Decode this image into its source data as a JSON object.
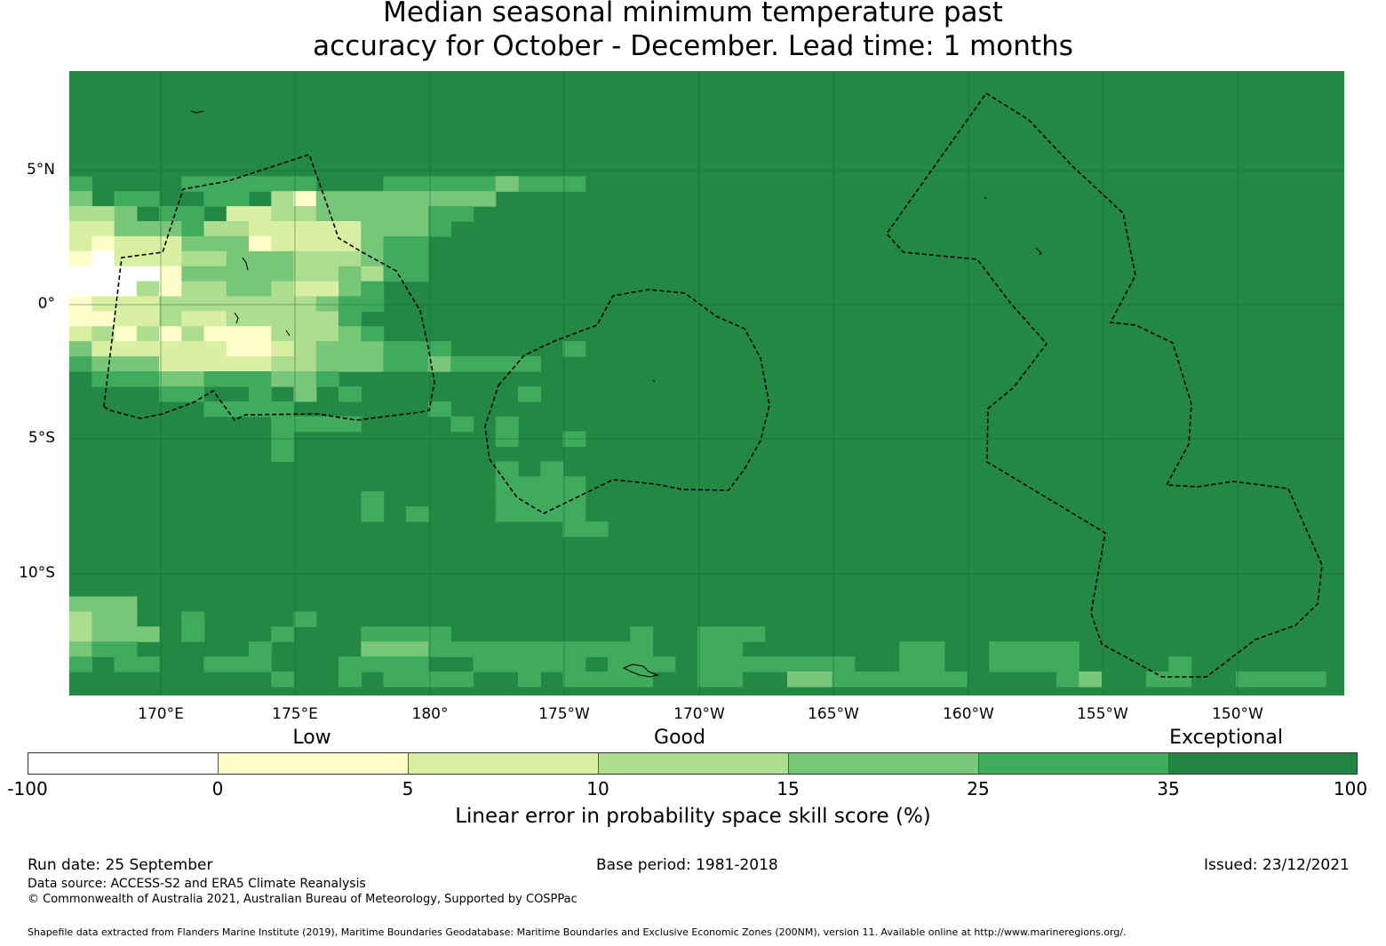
{
  "title": {
    "line1": "Median seasonal minimum temperature past",
    "line2": "accuracy for October - December. Lead time: 1 months"
  },
  "map": {
    "background_color": "#248845",
    "lat_labels": [
      "5°N",
      "0°",
      "5°S",
      "10°S"
    ],
    "lon_labels": [
      "170°E",
      "175°E",
      "180°",
      "175°W",
      "170°W",
      "165°W",
      "160°W",
      "155°W",
      "150°W"
    ],
    "boundary_style": "dashed black",
    "grid": true
  },
  "legend": {
    "categories": [
      "Low",
      "Good",
      "Exceptional"
    ],
    "ticks": [
      "-100",
      "0",
      "5",
      "10",
      "15",
      "25",
      "35",
      "100"
    ],
    "colors": [
      "#ffffff",
      "#ffffcc",
      "#d9f0a3",
      "#addd8e",
      "#78c679",
      "#41ab5d",
      "#238443"
    ],
    "label": "Linear error in probability space skill score (%)"
  },
  "footer": {
    "run_date": "Run date: 25 September",
    "base_period": "Base period: 1981-2018",
    "issued": "Issued: 23/12/2021",
    "data_source": "Data source: ACCESS-S2 and ERA5 Climate Reanalysis",
    "copyright": "© Commonwealth of Australia 2021, Australian Bureau of Meteorology, Supported by COSPPac",
    "shapefile": "Shapefile data extracted from Flanders Marine Institute (2019), Maritime Boundaries Geodatabase: Maritime Boundaries and Exclusive Economic Zones (200NM), version 11. Available online at http://www.marineregions.org/."
  }
}
